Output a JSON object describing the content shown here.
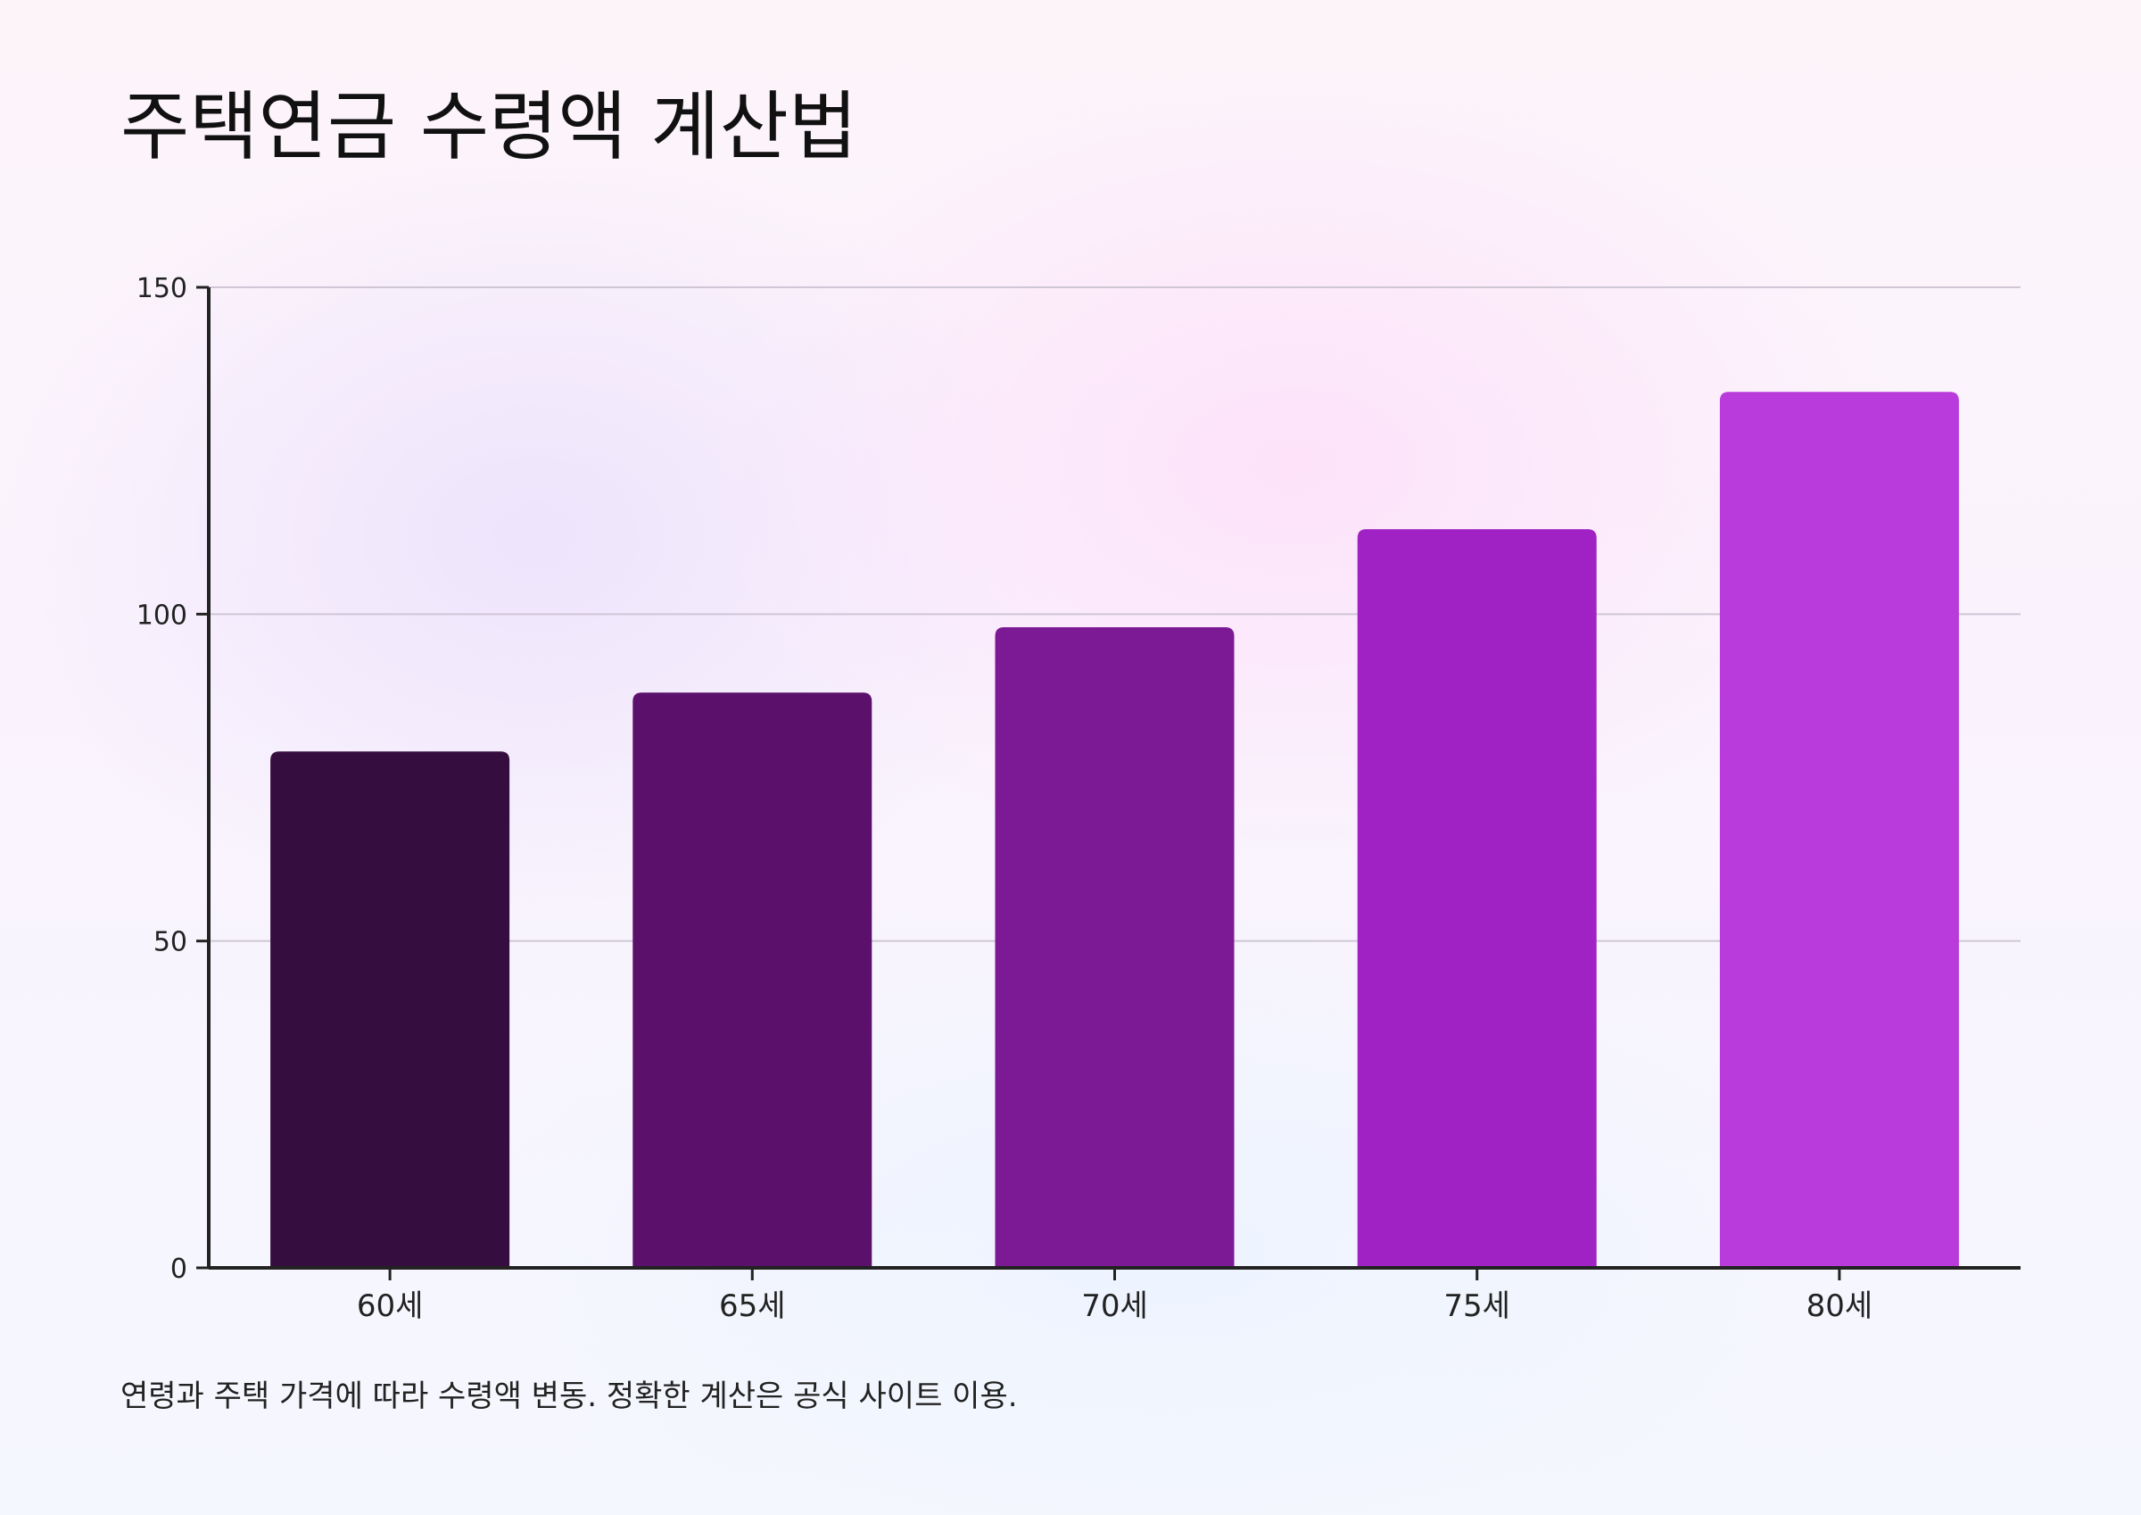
{
  "chart_data": {
    "type": "bar",
    "title": "주택연금 수령액 계산법",
    "categories": [
      "60세",
      "65세",
      "70세",
      "75세",
      "80세"
    ],
    "values": [
      79,
      88,
      98,
      113,
      134
    ],
    "colors": [
      "#350d3f",
      "#5b116b",
      "#7c1a96",
      "#a022c5",
      "#b93bdc"
    ],
    "ylim": [
      0,
      150
    ],
    "yticks": [
      0,
      50,
      100,
      150
    ],
    "grid": true,
    "legend": "none"
  },
  "footnote": "연령과 주택 가격에 따라 수령액 변동. 정확한 계산은 공식 사이트 이용."
}
